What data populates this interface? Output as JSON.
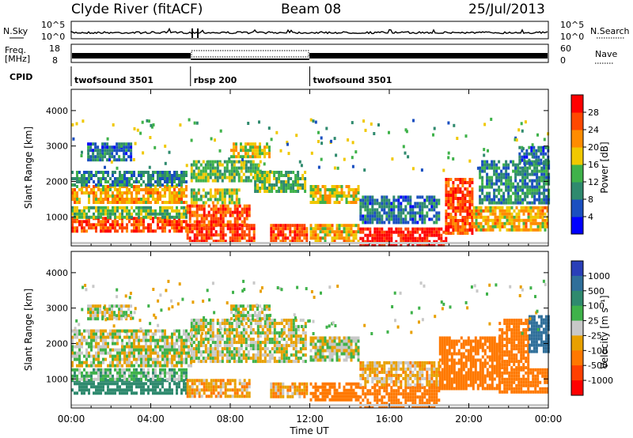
{
  "header": {
    "station": "Clyde River (fitACF)",
    "beam": "Beam 08",
    "date": "25/Jul/2013"
  },
  "params": {
    "nsky_label": "N.Sky",
    "nsky_ticks": [
      "10^5",
      "10^0"
    ],
    "nsearch_label": "N.Search",
    "nsearch_ticks": [
      "10^5",
      "10^0"
    ],
    "freq_label_1": "Freq.",
    "freq_label_2": "[MHz]",
    "freq_ticks": [
      "18",
      "8"
    ],
    "nave_label": "Nave",
    "nave_ticks": [
      "60",
      "0"
    ],
    "cpid_label": "CPID",
    "cpid_segments": [
      {
        "label": "twofsound 3501",
        "start_hour": 0,
        "end_hour": 6
      },
      {
        "label": "rbsp 200",
        "start_hour": 6,
        "end_hour": 12
      },
      {
        "label": "twofsound 3501",
        "start_hour": 12,
        "end_hour": 24
      }
    ]
  },
  "x_axis": {
    "label": "Time UT",
    "ticks": [
      "00:00",
      "04:00",
      "08:00",
      "12:00",
      "16:00",
      "20:00",
      "00:00"
    ],
    "range_hours": [
      0,
      24
    ]
  },
  "chart_data": [
    {
      "type": "heatmap",
      "name": "power",
      "ylabel": "Slant Range [km]",
      "yticks": [
        1000,
        2000,
        3000,
        4000
      ],
      "ylim": [
        180,
        4600
      ],
      "xlim_hours": [
        0,
        24
      ],
      "colorbar": {
        "label": "Power [dB]",
        "ticks": [
          "4",
          "8",
          "12",
          "16",
          "20",
          "24",
          "28"
        ],
        "range": [
          0,
          32
        ],
        "colors": [
          "#0000ff",
          "#1a4fc0",
          "#2f8a6e",
          "#3fb24a",
          "#f0c800",
          "#ff8c00",
          "#ff4800",
          "#ff0000"
        ]
      },
      "bands": [
        {
          "t0": 0.0,
          "t1": 5.8,
          "r0": 600,
          "r1": 1000,
          "v": 26
        },
        {
          "t0": 0.0,
          "t1": 5.8,
          "r0": 1000,
          "r1": 1300,
          "v": 14
        },
        {
          "t0": 0.0,
          "t1": 5.8,
          "r0": 1400,
          "r1": 1900,
          "v": 20
        },
        {
          "t0": 0.0,
          "t1": 5.8,
          "r0": 1900,
          "r1": 2300,
          "v": 10
        },
        {
          "t0": 0.8,
          "t1": 3.0,
          "r0": 2600,
          "r1": 3100,
          "v": 8
        },
        {
          "t0": 5.8,
          "t1": 9.2,
          "r0": 300,
          "r1": 800,
          "v": 28
        },
        {
          "t0": 5.8,
          "t1": 9.0,
          "r0": 800,
          "r1": 1350,
          "v": 26
        },
        {
          "t0": 6.0,
          "t1": 8.5,
          "r0": 1400,
          "r1": 1800,
          "v": 16
        },
        {
          "t0": 6.0,
          "t1": 9.5,
          "r0": 2000,
          "r1": 2600,
          "v": 14
        },
        {
          "t0": 8.0,
          "t1": 10.0,
          "r0": 2700,
          "r1": 3100,
          "v": 18
        },
        {
          "t0": 9.2,
          "t1": 11.8,
          "r0": 1700,
          "r1": 2300,
          "v": 14
        },
        {
          "t0": 10.0,
          "t1": 11.8,
          "r0": 300,
          "r1": 800,
          "v": 26
        },
        {
          "t0": 12.0,
          "t1": 14.5,
          "r0": 1400,
          "r1": 1900,
          "v": 18
        },
        {
          "t0": 12.0,
          "t1": 14.5,
          "r0": 300,
          "r1": 800,
          "v": 20
        },
        {
          "t0": 14.5,
          "t1": 18.8,
          "r0": 200,
          "r1": 700,
          "v": 30
        },
        {
          "t0": 14.5,
          "t1": 18.5,
          "r0": 800,
          "r1": 1600,
          "v": 8
        },
        {
          "t0": 18.8,
          "t1": 20.2,
          "r0": 500,
          "r1": 2100,
          "v": 26
        },
        {
          "t0": 20.2,
          "t1": 24.0,
          "r0": 600,
          "r1": 1300,
          "v": 20
        },
        {
          "t0": 20.5,
          "t1": 24.0,
          "r0": 1400,
          "r1": 2600,
          "v": 10
        },
        {
          "t0": 22.5,
          "t1": 24.0,
          "r0": 2500,
          "r1": 3000,
          "v": 8
        }
      ]
    },
    {
      "type": "heatmap",
      "name": "velocity",
      "ylabel": "Slant Range [km]",
      "yticks": [
        1000,
        2000,
        3000,
        4000
      ],
      "ylim": [
        180,
        4600
      ],
      "xlim_hours": [
        0,
        24
      ],
      "colorbar": {
        "label": "Velocity [m s⁻¹]",
        "ticks": [
          "1000",
          "500",
          "100",
          "25",
          "-25",
          "-100",
          "-500",
          "-1000"
        ],
        "colors": [
          "#2a3fb8",
          "#2f6f9a",
          "#2f8a6e",
          "#3fb24a",
          "#c8c8c8",
          "#e8a000",
          "#ff7800",
          "#ff4000",
          "#ff0000"
        ]
      },
      "bands": [
        {
          "t0": 0.0,
          "t1": 5.8,
          "r0": 600,
          "r1": 1000,
          "v": 200
        },
        {
          "t0": 0.0,
          "t1": 5.8,
          "r0": 1000,
          "r1": 1300,
          "v": 60
        },
        {
          "t0": 0.0,
          "t1": 6.0,
          "r0": 1400,
          "r1": 2400,
          "v": 0
        },
        {
          "t0": 0.8,
          "t1": 3.0,
          "r0": 2700,
          "r1": 3100,
          "v": 0
        },
        {
          "t0": 5.8,
          "t1": 9.0,
          "r0": 500,
          "r1": 1000,
          "v": -80
        },
        {
          "t0": 6.0,
          "t1": 11.8,
          "r0": 1500,
          "r1": 2700,
          "v": 0
        },
        {
          "t0": 8.0,
          "t1": 10.0,
          "r0": 2700,
          "r1": 3100,
          "v": 0
        },
        {
          "t0": 10.0,
          "t1": 11.8,
          "r0": 500,
          "r1": 900,
          "v": -80
        },
        {
          "t0": 12.0,
          "t1": 14.5,
          "r0": 1500,
          "r1": 2200,
          "v": 0
        },
        {
          "t0": 12.0,
          "t1": 14.5,
          "r0": 400,
          "r1": 900,
          "v": -200
        },
        {
          "t0": 14.5,
          "t1": 18.5,
          "r0": 200,
          "r1": 800,
          "v": -300
        },
        {
          "t0": 14.5,
          "t1": 18.5,
          "r0": 800,
          "r1": 1500,
          "v": -60
        },
        {
          "t0": 18.5,
          "t1": 21.5,
          "r0": 700,
          "r1": 2200,
          "v": -300
        },
        {
          "t0": 21.5,
          "t1": 24.0,
          "r0": 600,
          "r1": 1300,
          "v": -400
        },
        {
          "t0": 21.5,
          "t1": 23.0,
          "r0": 1300,
          "r1": 2700,
          "v": -200
        },
        {
          "t0": 23.0,
          "t1": 24.0,
          "r0": 1800,
          "r1": 2800,
          "v": 600
        }
      ]
    }
  ]
}
